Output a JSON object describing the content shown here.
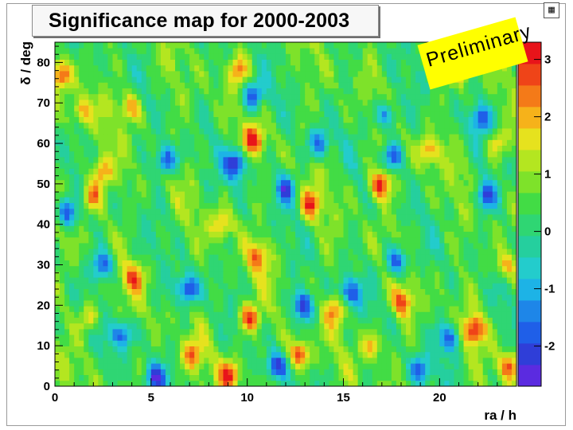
{
  "chart_data": {
    "type": "heatmap",
    "title": "Significance map for 2000-2003",
    "xlabel": "ra / h",
    "ylabel": "δ / deg",
    "xlim": [
      0,
      24
    ],
    "ylim": [
      0,
      85
    ],
    "x_ticks": [
      0,
      5,
      10,
      15,
      20
    ],
    "y_ticks": [
      0,
      10,
      20,
      30,
      40,
      50,
      60,
      70,
      80
    ],
    "zlim": [
      -2.7,
      3.3
    ],
    "colorbar_ticks": [
      3,
      2,
      1,
      0,
      -1,
      -2
    ],
    "colorbar_labels": [
      "3",
      "2",
      "1",
      "0",
      "-1",
      "-2"
    ],
    "legend_placement": "right colorbar",
    "grid": false,
    "annotation": "Preliminary",
    "palette": [
      "#5b2be0",
      "#2f3ed8",
      "#1f5fe8",
      "#1e86e8",
      "#1db3e6",
      "#23cccc",
      "#25cf9e",
      "#2fd673",
      "#42dc45",
      "#7ee22a",
      "#b4e620",
      "#e6e21e",
      "#f6b21a",
      "#f47a18",
      "#ef4418",
      "#e8141a"
    ],
    "hotspots": [
      {
        "x": 0.3,
        "y": 77,
        "value": 2.8
      },
      {
        "x": 3.9,
        "y": 69,
        "value": 2.2
      },
      {
        "x": 9.5,
        "y": 78,
        "value": 2.0
      },
      {
        "x": 1.4,
        "y": 68,
        "value": 2.0
      },
      {
        "x": 21.0,
        "y": 79,
        "value": 1.8
      },
      {
        "x": 10.3,
        "y": 61,
        "value": 2.5
      },
      {
        "x": 19.4,
        "y": 58,
        "value": 2.2
      },
      {
        "x": 23.0,
        "y": 60,
        "value": 2.0
      },
      {
        "x": 2.4,
        "y": 53,
        "value": 2.4
      },
      {
        "x": 16.9,
        "y": 50,
        "value": 3.1
      },
      {
        "x": 1.9,
        "y": 47,
        "value": 2.5
      },
      {
        "x": 13.3,
        "y": 45,
        "value": 2.4
      },
      {
        "x": 8.7,
        "y": 40,
        "value": 2.0
      },
      {
        "x": 10.6,
        "y": 32,
        "value": 2.2
      },
      {
        "x": 4.1,
        "y": 27,
        "value": 2.1
      },
      {
        "x": 23.4,
        "y": 30,
        "value": 2.0
      },
      {
        "x": 18.1,
        "y": 21,
        "value": 2.4
      },
      {
        "x": 1.8,
        "y": 17,
        "value": 2.0
      },
      {
        "x": 10.1,
        "y": 17,
        "value": 2.8
      },
      {
        "x": 14.6,
        "y": 19,
        "value": 2.2
      },
      {
        "x": 21.8,
        "y": 14,
        "value": 2.9
      },
      {
        "x": 12.7,
        "y": 8,
        "value": 3.0
      },
      {
        "x": 9.1,
        "y": 3,
        "value": 2.8
      },
      {
        "x": 23.6,
        "y": 5,
        "value": 2.5
      },
      {
        "x": 7.1,
        "y": 8,
        "value": 2.1
      },
      {
        "x": 16.5,
        "y": 10,
        "value": 2.0
      }
    ],
    "coldspots": [
      {
        "x": 10.3,
        "y": 72,
        "value": -2.0
      },
      {
        "x": 17.2,
        "y": 67,
        "value": -1.9
      },
      {
        "x": 9.4,
        "y": 55,
        "value": -2.5
      },
      {
        "x": 5.8,
        "y": 56,
        "value": -2.2
      },
      {
        "x": 13.7,
        "y": 60,
        "value": -1.8
      },
      {
        "x": 17.6,
        "y": 57,
        "value": -1.9
      },
      {
        "x": 22.1,
        "y": 66,
        "value": -1.7
      },
      {
        "x": 12.0,
        "y": 49,
        "value": -1.8
      },
      {
        "x": 22.4,
        "y": 47,
        "value": -2.1
      },
      {
        "x": 0.6,
        "y": 43,
        "value": -2.0
      },
      {
        "x": 17.8,
        "y": 31,
        "value": -2.3
      },
      {
        "x": 2.5,
        "y": 30,
        "value": -2.0
      },
      {
        "x": 6.9,
        "y": 24,
        "value": -2.3
      },
      {
        "x": 12.9,
        "y": 20,
        "value": -2.3
      },
      {
        "x": 15.3,
        "y": 23,
        "value": -2.0
      },
      {
        "x": 3.5,
        "y": 13,
        "value": -1.9
      },
      {
        "x": 20.5,
        "y": 12,
        "value": -2.0
      },
      {
        "x": 11.5,
        "y": 5,
        "value": -2.2
      },
      {
        "x": 5.2,
        "y": 2,
        "value": -2.0
      },
      {
        "x": 19.0,
        "y": 4,
        "value": -1.8
      }
    ]
  }
}
